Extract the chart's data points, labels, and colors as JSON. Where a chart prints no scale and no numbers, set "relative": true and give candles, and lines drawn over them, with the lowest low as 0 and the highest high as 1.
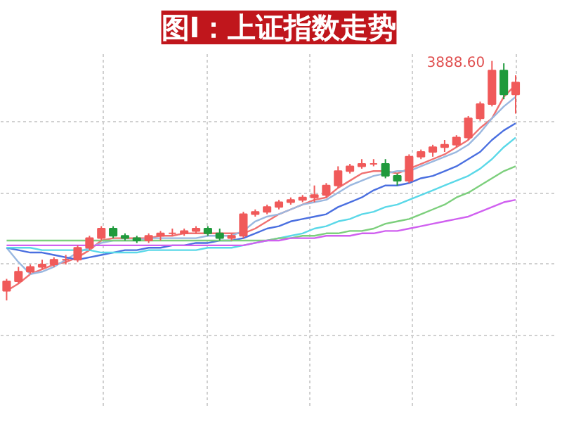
{
  "chart_data": {
    "type": "candlestick",
    "title": "图I：上证指数走势",
    "relative": true,
    "grid": true,
    "tick_labels": false,
    "categories": [
      null,
      null,
      null,
      null,
      null,
      null,
      null,
      null,
      null,
      null,
      null,
      null,
      null,
      null,
      null,
      null,
      null,
      null,
      null,
      null,
      null,
      null,
      null,
      null,
      null,
      null,
      null,
      null,
      null,
      null,
      null,
      null,
      null,
      null,
      null,
      null,
      null,
      null,
      null,
      null,
      null,
      null,
      null,
      null
    ],
    "ohlc": [
      [
        0.04,
        0.09,
        0,
        0.08
      ],
      [
        0.08,
        0.14,
        0.07,
        0.12
      ],
      [
        0.12,
        0.15,
        0.11,
        0.14
      ],
      [
        0.14,
        0.17,
        0.13,
        0.15
      ],
      [
        0.15,
        0.18,
        0.14,
        0.17
      ],
      [
        0.17,
        0.19,
        0.15,
        0.17
      ],
      [
        0.17,
        0.23,
        0.16,
        0.22
      ],
      [
        0.22,
        0.27,
        0.21,
        0.26
      ],
      [
        0.26,
        0.31,
        0.25,
        0.3
      ],
      [
        0.3,
        0.31,
        0.26,
        0.27
      ],
      [
        0.27,
        0.28,
        0.25,
        0.26
      ],
      [
        0.26,
        0.27,
        0.24,
        0.25
      ],
      [
        0.25,
        0.28,
        0.24,
        0.27
      ],
      [
        0.27,
        0.29,
        0.25,
        0.28
      ],
      [
        0.28,
        0.3,
        0.27,
        0.28
      ],
      [
        0.28,
        0.3,
        0.27,
        0.29
      ],
      [
        0.29,
        0.31,
        0.28,
        0.3
      ],
      [
        0.3,
        0.31,
        0.27,
        0.28
      ],
      [
        0.28,
        0.3,
        0.25,
        0.26
      ],
      [
        0.26,
        0.28,
        0.25,
        0.27
      ],
      [
        0.27,
        0.37,
        0.26,
        0.36
      ],
      [
        0.36,
        0.38,
        0.35,
        0.37
      ],
      [
        0.37,
        0.4,
        0.36,
        0.39
      ],
      [
        0.39,
        0.42,
        0.38,
        0.41
      ],
      [
        0.41,
        0.43,
        0.4,
        0.42
      ],
      [
        0.42,
        0.44,
        0.41,
        0.43
      ],
      [
        0.43,
        0.48,
        0.41,
        0.44
      ],
      [
        0.44,
        0.49,
        0.43,
        0.48
      ],
      [
        0.48,
        0.56,
        0.47,
        0.54
      ],
      [
        0.54,
        0.57,
        0.53,
        0.56
      ],
      [
        0.56,
        0.59,
        0.55,
        0.57
      ],
      [
        0.57,
        0.59,
        0.56,
        0.57
      ],
      [
        0.57,
        0.59,
        0.51,
        0.52
      ],
      [
        0.52,
        0.53,
        0.48,
        0.5
      ],
      [
        0.5,
        0.61,
        0.49,
        0.6
      ],
      [
        0.6,
        0.63,
        0.59,
        0.62
      ],
      [
        0.62,
        0.65,
        0.6,
        0.64
      ],
      [
        0.64,
        0.67,
        0.62,
        0.65
      ],
      [
        0.65,
        0.69,
        0.64,
        0.68
      ],
      [
        0.68,
        0.77,
        0.67,
        0.76
      ],
      [
        0.76,
        0.83,
        0.75,
        0.82
      ],
      [
        0.82,
        1,
        0.81,
        0.96
      ],
      [
        0.96,
        0.99,
        0.84,
        0.86
      ],
      [
        0.86,
        0.94,
        0.78,
        0.91
      ]
    ],
    "colors": [
      "#f05a5a",
      "#f05a5a",
      "#f05a5a",
      "#f05a5a",
      "#f05a5a",
      "#f05a5a",
      "#f05a5a",
      "#f05a5a",
      "#f05a5a",
      "#1f9a3c",
      "#1f9a3c",
      "#1f9a3c",
      "#f05a5a",
      "#f05a5a",
      "#f05a5a",
      "#f05a5a",
      "#f05a5a",
      "#1f9a3c",
      "#1f9a3c",
      "#f05a5a",
      "#f05a5a",
      "#f05a5a",
      "#f05a5a",
      "#f05a5a",
      "#f05a5a",
      "#f05a5a",
      "#f05a5a",
      "#f05a5a",
      "#f05a5a",
      "#f05a5a",
      "#f05a5a",
      "#f05a5a",
      "#1f9a3c",
      "#1f9a3c",
      "#f05a5a",
      "#f05a5a",
      "#f05a5a",
      "#f05a5a",
      "#f05a5a",
      "#f05a5a",
      "#f05a5a",
      "#f05a5a",
      "#1f9a3c",
      "#f05a5a"
    ],
    "series": [
      {
        "type": "line",
        "color": "#f07070",
        "values": [
          0.04,
          0.07,
          0.11,
          0.13,
          0.15,
          0.16,
          0.18,
          0.21,
          0.25,
          0.26,
          0.26,
          0.26,
          0.26,
          0.27,
          0.27,
          0.28,
          0.28,
          0.28,
          0.28,
          0.28,
          0.28,
          0.3,
          0.33,
          0.36,
          0.38,
          0.4,
          0.42,
          0.43,
          0.47,
          0.5,
          0.53,
          0.54,
          0.54,
          0.53,
          0.55,
          0.57,
          0.59,
          0.61,
          0.64,
          0.67,
          0.72,
          0.76,
          0.85,
          0.9
        ]
      },
      {
        "type": "line",
        "color": "#9ab8e0",
        "values": [
          0.22,
          0.16,
          0.11,
          0.12,
          0.14,
          0.17,
          0.2,
          0.22,
          0.24,
          0.25,
          0.25,
          0.25,
          0.26,
          0.26,
          0.26,
          0.26,
          0.26,
          0.27,
          0.27,
          0.27,
          0.29,
          0.33,
          0.35,
          0.36,
          0.38,
          0.4,
          0.41,
          0.42,
          0.45,
          0.48,
          0.5,
          0.52,
          0.53,
          0.54,
          0.54,
          0.56,
          0.58,
          0.6,
          0.62,
          0.65,
          0.7,
          0.76,
          0.81,
          0.85
        ]
      },
      {
        "type": "line",
        "color": "#4a6fe0",
        "values": [
          0.22,
          0.21,
          0.2,
          0.2,
          0.19,
          0.18,
          0.17,
          0.18,
          0.19,
          0.2,
          0.21,
          0.21,
          0.22,
          0.22,
          0.23,
          0.23,
          0.24,
          0.24,
          0.25,
          0.25,
          0.26,
          0.28,
          0.3,
          0.31,
          0.33,
          0.34,
          0.35,
          0.36,
          0.39,
          0.41,
          0.43,
          0.46,
          0.48,
          0.48,
          0.49,
          0.51,
          0.52,
          0.54,
          0.56,
          0.59,
          0.62,
          0.67,
          0.71,
          0.74
        ]
      },
      {
        "type": "line",
        "color": "#5ad8e8",
        "values": [
          0.22,
          0.22,
          0.22,
          0.21,
          0.21,
          0.21,
          0.21,
          0.21,
          0.2,
          0.2,
          0.2,
          0.2,
          0.21,
          0.21,
          0.21,
          0.21,
          0.21,
          0.22,
          0.22,
          0.22,
          0.23,
          0.24,
          0.25,
          0.26,
          0.27,
          0.28,
          0.3,
          0.31,
          0.33,
          0.34,
          0.36,
          0.37,
          0.39,
          0.4,
          0.42,
          0.44,
          0.46,
          0.48,
          0.5,
          0.52,
          0.55,
          0.59,
          0.64,
          0.68
        ]
      },
      {
        "type": "line",
        "color": "#7ccf7c",
        "values": [
          0.25,
          0.25,
          0.25,
          0.25,
          0.25,
          0.25,
          0.25,
          0.25,
          0.25,
          0.25,
          0.25,
          0.25,
          0.25,
          0.25,
          0.25,
          0.25,
          0.25,
          0.25,
          0.25,
          0.25,
          0.25,
          0.25,
          0.25,
          0.26,
          0.26,
          0.27,
          0.27,
          0.28,
          0.28,
          0.29,
          0.29,
          0.3,
          0.32,
          0.33,
          0.34,
          0.36,
          0.38,
          0.4,
          0.43,
          0.45,
          0.48,
          0.51,
          0.54,
          0.56
        ]
      },
      {
        "type": "line",
        "color": "#d060f0",
        "values": [
          0.23,
          0.23,
          0.23,
          0.23,
          0.23,
          0.23,
          0.23,
          0.23,
          0.23,
          0.23,
          0.23,
          0.23,
          0.23,
          0.23,
          0.23,
          0.23,
          0.23,
          0.23,
          0.23,
          0.23,
          0.23,
          0.24,
          0.25,
          0.25,
          0.26,
          0.26,
          0.26,
          0.27,
          0.27,
          0.27,
          0.28,
          0.28,
          0.29,
          0.29,
          0.3,
          0.31,
          0.32,
          0.33,
          0.34,
          0.35,
          0.37,
          0.39,
          0.41,
          0.42
        ]
      }
    ],
    "annotations": [
      "3888.60"
    ]
  }
}
